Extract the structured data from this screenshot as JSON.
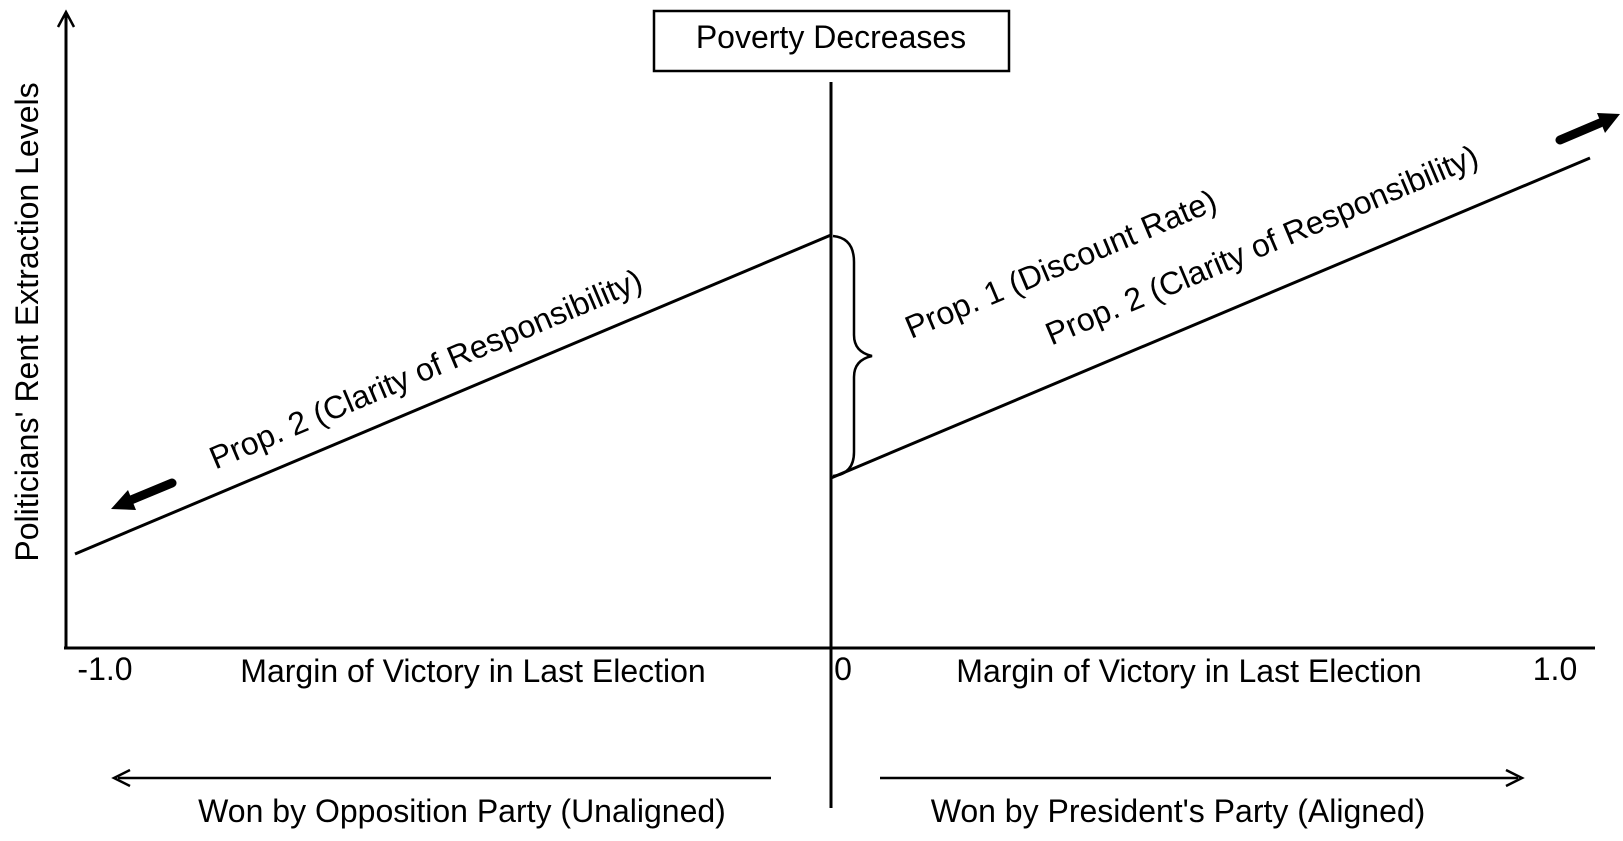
{
  "title_box": {
    "label": "Poverty Decreases"
  },
  "y_axis": {
    "label": "Politicians' Rent Extraction Levels"
  },
  "x_axis": {
    "left_tick": "-1.0",
    "center_tick": "0",
    "right_tick": "1.0",
    "left_label": "Margin of Victory in Last Election",
    "right_label": "Margin of Victory in Last Election"
  },
  "regions": {
    "left": "Won by Opposition Party (Unaligned)",
    "right": "Won by President's Party (Aligned)"
  },
  "annotations": {
    "left_line": "Prop. 2 (Clarity of Responsibility)",
    "discontinuity": "Prop. 1 (Discount Rate)",
    "right_line": "Prop. 2 (Clarity of Responsibility)"
  },
  "colors": {
    "ink": "#000000",
    "background": "#ffffff"
  }
}
